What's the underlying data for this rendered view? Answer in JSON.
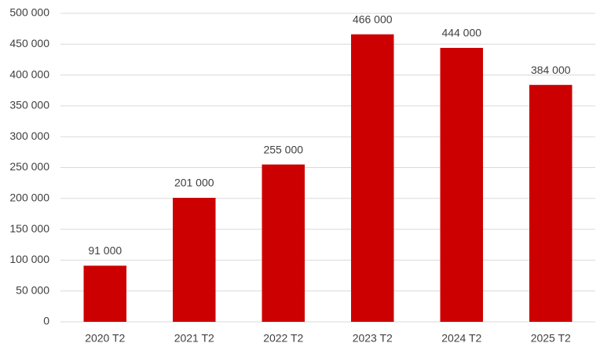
{
  "chart_data": {
    "type": "bar",
    "categories": [
      "2020 T2",
      "2021 T2",
      "2022 T2",
      "2023 T2",
      "2024 T2",
      "2025 T2"
    ],
    "values": [
      91000,
      201000,
      255000,
      466000,
      444000,
      384000
    ],
    "value_labels": [
      "91 000",
      "201 000",
      "255 000",
      "466 000",
      "444 000",
      "384 000"
    ],
    "color": "#cc0000",
    "ylim": [
      0,
      500000
    ],
    "yticks": [
      0,
      {
        "value": 50000,
        "label": "50 000"
      },
      {
        "value": 100000,
        "label": "100 000"
      },
      {
        "value": 150000,
        "label": "150 000"
      },
      {
        "value": 200000,
        "label": "200 000"
      },
      {
        "value": 250000,
        "label": "250 000"
      },
      {
        "value": 300000,
        "label": "300 000"
      },
      {
        "value": 350000,
        "label": "350 000"
      },
      {
        "value": 400000,
        "label": "400 000"
      },
      {
        "value": 450000,
        "label": "450 000"
      },
      {
        "value": 500000,
        "label": "500 000"
      }
    ],
    "grid": true
  }
}
